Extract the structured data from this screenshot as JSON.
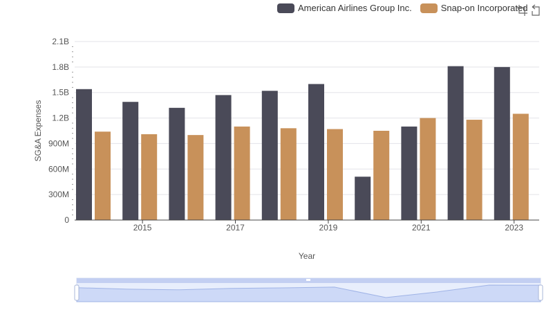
{
  "legend": {
    "items": [
      {
        "label": "American Airlines Group Inc.",
        "color": "#4a4a58"
      },
      {
        "label": "Snap-on Incorporated",
        "color": "#c8915a"
      }
    ]
  },
  "toolbox": {
    "icons": [
      "zoom-icon",
      "restore-icon"
    ]
  },
  "chart_data": {
    "type": "bar",
    "xlabel": "Year",
    "ylabel": "SG&A Expenses",
    "x_tick_labels": [
      "2015",
      "2017",
      "2019",
      "2021",
      "2023"
    ],
    "y_tick_labels": [
      "0",
      "300M",
      "600M",
      "900M",
      "1.2B",
      "1.5B",
      "1.8B",
      "2.1B"
    ],
    "ylim": [
      0,
      2100000000
    ],
    "categories": [
      "2014",
      "2015",
      "2016",
      "2017",
      "2018",
      "2019",
      "2020",
      "2021",
      "2022",
      "2023"
    ],
    "series": [
      {
        "name": "American Airlines Group Inc.",
        "color": "#4a4a58",
        "values": [
          1540000000,
          1390000000,
          1320000000,
          1470000000,
          1520000000,
          1600000000,
          510000000,
          1100000000,
          1810000000,
          1800000000
        ]
      },
      {
        "name": "Snap-on Incorporated",
        "color": "#c8915a",
        "values": [
          1040000000,
          1010000000,
          1000000000,
          1100000000,
          1080000000,
          1070000000,
          1050000000,
          1200000000,
          1180000000,
          1250000000
        ]
      }
    ],
    "grid": true,
    "legend_position": "top-right",
    "data_zoom": {
      "range_percent": [
        0,
        100
      ]
    }
  }
}
